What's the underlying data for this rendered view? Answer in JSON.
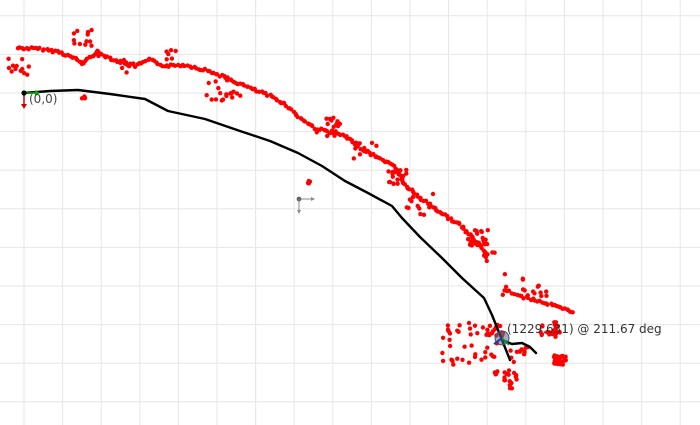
{
  "map": {
    "origin_label": "(0,0)",
    "robot_pose_label": "(1229,631) @ 211.67 deg",
    "colors": {
      "scan_points": "#ff0000",
      "trajectory": "#000000",
      "grid": "#e6e6e6",
      "axis_x": "#00aa00",
      "axis_y": "#cc0000",
      "robot": "#5a6a8a"
    },
    "icons": [
      "origin-axes-icon",
      "waypoint-marker-icon",
      "robot-pose-icon"
    ]
  }
}
